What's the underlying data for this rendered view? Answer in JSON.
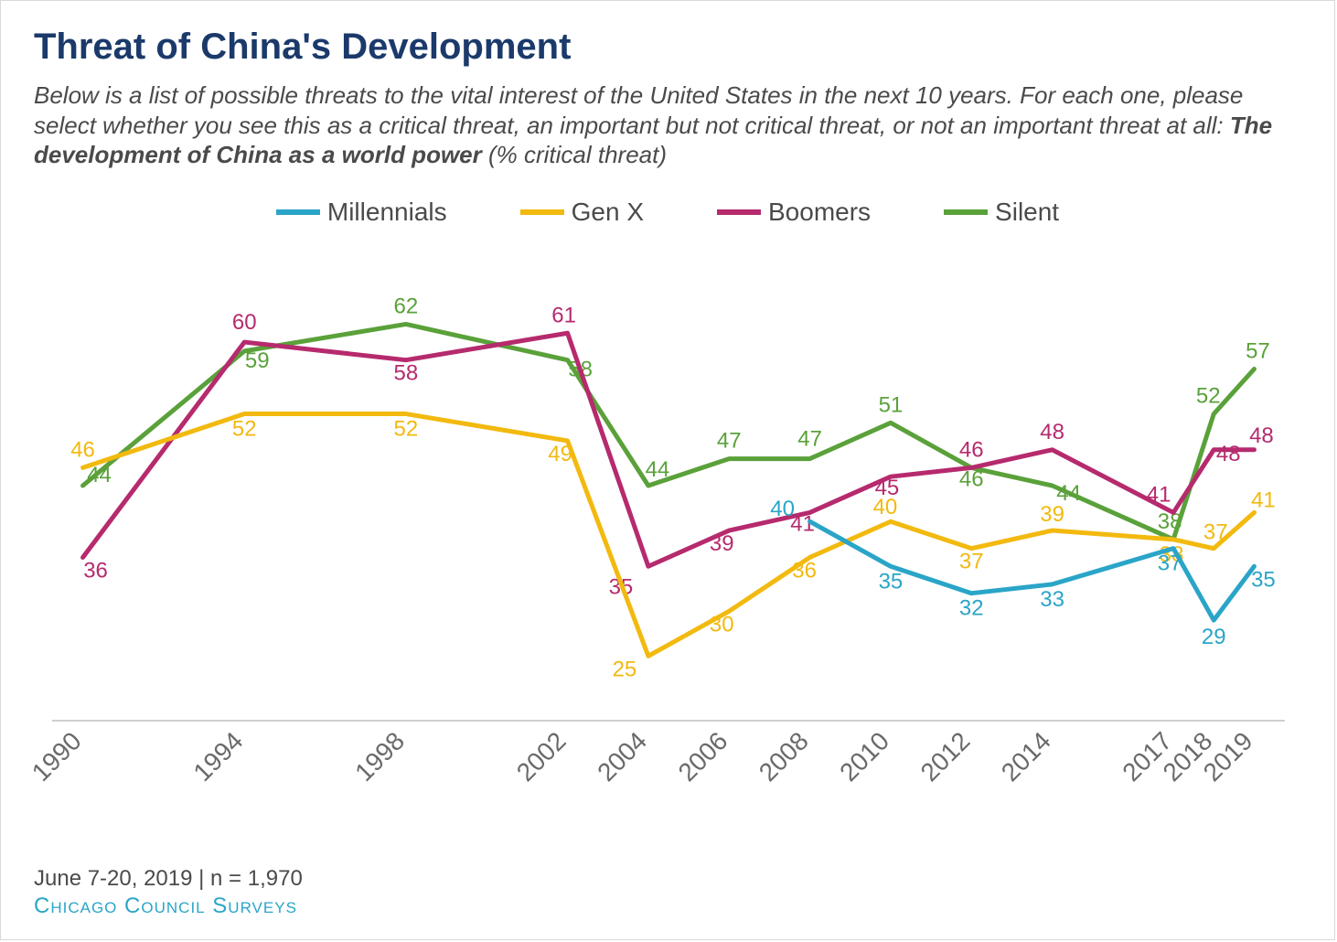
{
  "title": "Threat of China's Development",
  "subtitle_prefix": "Below is a list of possible threats to the vital interest of the United States in the next 10 years. For each one, please select whether you see this as a critical threat, an important but not critical threat, or not an important threat at all: ",
  "subtitle_bold": "The development of China as a world power",
  "subtitle_suffix": " (% critical threat)",
  "footer_meta": "June 7-20, 2019 | n = 1,970",
  "footer_source": "Chicago Council Surveys",
  "chart": {
    "type": "line",
    "x_labels": [
      "1990",
      "1994",
      "1998",
      "2002",
      "2004",
      "2006",
      "2008",
      "2010",
      "2012",
      "2014",
      "2017",
      "2018",
      "2019"
    ],
    "x_positions": [
      0,
      3,
      6,
      9,
      10.5,
      12,
      13.5,
      15,
      16.5,
      18,
      20.25,
      21,
      21.75
    ],
    "x_domain": [
      -0.4,
      22.15
    ],
    "y_domain": [
      18,
      70
    ],
    "line_width": 5,
    "tick_color": "#6a6a6a",
    "axis_rotate": -45,
    "baseline_color": "#cfcfcf",
    "colors": {
      "Millennials": "#2aa5c8",
      "Gen X": "#f2b90f",
      "Boomers": "#b62a6e",
      "Silent": "#5aa13a"
    },
    "series": [
      {
        "name": "Silent",
        "color_key": "Silent",
        "points": [
          {
            "xi": 0,
            "y": 44,
            "dx": 18,
            "dy": -4
          },
          {
            "xi": 1,
            "y": 59,
            "dx": 14,
            "dy": 18
          },
          {
            "xi": 2,
            "y": 62,
            "dx": 0,
            "dy": -12
          },
          {
            "xi": 3,
            "y": 58,
            "dx": 14,
            "dy": 18
          },
          {
            "xi": 4,
            "y": 44,
            "dx": 10,
            "dy": -10
          },
          {
            "xi": 5,
            "y": 47,
            "dx": 0,
            "dy": -12
          },
          {
            "xi": 6,
            "y": 47,
            "dx": 0,
            "dy": -14
          },
          {
            "xi": 7,
            "y": 51,
            "dx": 0,
            "dy": -12
          },
          {
            "xi": 8,
            "y": 46,
            "dx": 0,
            "dy": 20
          },
          {
            "xi": 9,
            "y": 44,
            "dx": 18,
            "dy": 16
          },
          {
            "xi": 10,
            "y": 38,
            "dx": -4,
            "dy": -12
          },
          {
            "xi": 11,
            "y": 52,
            "dx": -6,
            "dy": -12
          },
          {
            "xi": 12,
            "y": 57,
            "dx": 4,
            "dy": -12
          }
        ]
      },
      {
        "name": "Boomers",
        "color_key": "Boomers",
        "points": [
          {
            "xi": 0,
            "y": 36,
            "dx": 14,
            "dy": 22
          },
          {
            "xi": 1,
            "y": 60,
            "dx": 0,
            "dy": -14
          },
          {
            "xi": 2,
            "y": 58,
            "dx": 0,
            "dy": 22
          },
          {
            "xi": 3,
            "y": 61,
            "dx": -4,
            "dy": -12
          },
          {
            "xi": 4,
            "y": 35,
            "dx": -30,
            "dy": 30
          },
          {
            "xi": 5,
            "y": 39,
            "dx": -8,
            "dy": 22
          },
          {
            "xi": 6,
            "y": 41,
            "dx": -8,
            "dy": 20
          },
          {
            "xi": 7,
            "y": 45,
            "dx": -4,
            "dy": 20
          },
          {
            "xi": 8,
            "y": 46,
            "dx": 0,
            "dy": -12
          },
          {
            "xi": 9,
            "y": 48,
            "dx": 0,
            "dy": -12
          },
          {
            "xi": 10,
            "y": 41,
            "dx": -16,
            "dy": -12
          },
          {
            "xi": 11,
            "y": 48,
            "dx": 16,
            "dy": 12
          },
          {
            "xi": 12,
            "y": 48,
            "dx": 8,
            "dy": -8
          }
        ]
      },
      {
        "name": "Gen X",
        "color_key": "Gen X",
        "points": [
          {
            "xi": 0,
            "y": 46,
            "dx": 0,
            "dy": -12
          },
          {
            "xi": 1,
            "y": 52,
            "dx": 0,
            "dy": 24
          },
          {
            "xi": 2,
            "y": 52,
            "dx": 0,
            "dy": 24
          },
          {
            "xi": 3,
            "y": 49,
            "dx": -8,
            "dy": 22
          },
          {
            "xi": 4,
            "y": 25,
            "dx": -26,
            "dy": 22
          },
          {
            "xi": 5,
            "y": 30,
            "dx": -8,
            "dy": 22
          },
          {
            "xi": 6,
            "y": 36,
            "dx": -6,
            "dy": 22
          },
          {
            "xi": 7,
            "y": 40,
            "dx": -6,
            "dy": -8
          },
          {
            "xi": 8,
            "y": 37,
            "dx": 0,
            "dy": 22
          },
          {
            "xi": 9,
            "y": 39,
            "dx": 0,
            "dy": -10
          },
          {
            "xi": 10,
            "y": 38,
            "dx": -2,
            "dy": 24
          },
          {
            "xi": 11,
            "y": 37,
            "dx": 2,
            "dy": -10
          },
          {
            "xi": 12,
            "y": 41,
            "dx": 10,
            "dy": -6
          }
        ]
      },
      {
        "name": "Millennials",
        "color_key": "Millennials",
        "points": [
          {
            "xi": 6,
            "y": 40,
            "dx": -30,
            "dy": -6
          },
          {
            "xi": 7,
            "y": 35,
            "dx": 0,
            "dy": 24
          },
          {
            "xi": 8,
            "y": 32,
            "dx": 0,
            "dy": 24
          },
          {
            "xi": 9,
            "y": 33,
            "dx": 0,
            "dy": 24
          },
          {
            "xi": 10,
            "y": 37,
            "dx": -4,
            "dy": 24
          },
          {
            "xi": 11,
            "y": 29,
            "dx": 0,
            "dy": 26
          },
          {
            "xi": 12,
            "y": 35,
            "dx": 10,
            "dy": 22
          }
        ]
      }
    ],
    "legend_order": [
      "Millennials",
      "Gen X",
      "Boomers",
      "Silent"
    ]
  },
  "legend": {
    "millennials": "Millennials",
    "genx": "Gen X",
    "boomers": "Boomers",
    "silent": "Silent"
  }
}
